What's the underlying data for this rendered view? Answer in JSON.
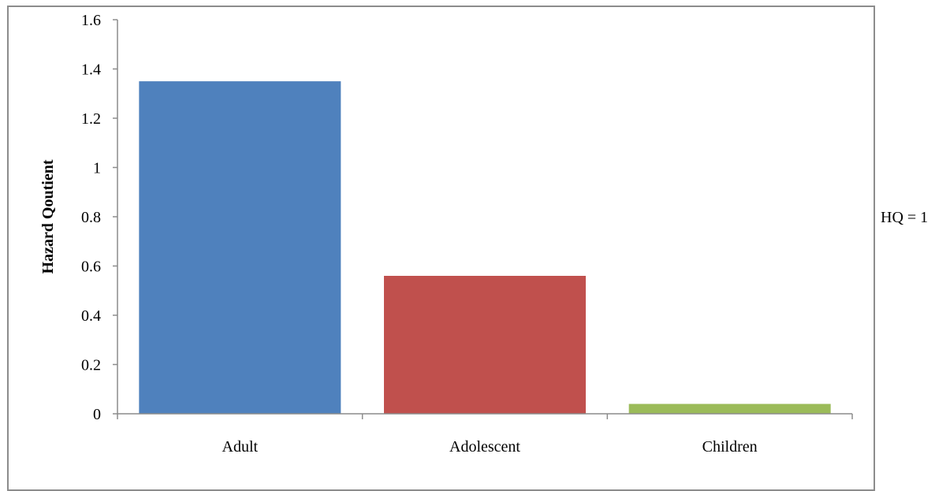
{
  "chart_data": {
    "type": "bar",
    "categories": [
      "Adult",
      "Adolescent",
      "Children"
    ],
    "values": [
      1.35,
      0.56,
      0.04
    ],
    "colors": [
      "#4f81bd",
      "#c0504d",
      "#9bbb59"
    ],
    "title": "",
    "xlabel": "",
    "ylabel": "Hazard Qoutient",
    "ylim": [
      0,
      1.6
    ],
    "yticks": [
      0,
      0.2,
      0.4,
      0.6,
      0.8,
      1,
      1.2,
      1.4,
      1.6
    ],
    "ytick_labels": [
      "0",
      "0.2",
      "0.4",
      "0.6",
      "0.8",
      "1",
      "1.2",
      "1.4",
      "1.6"
    ],
    "grid": false,
    "legend": "none",
    "annotations": [
      {
        "text": "HQ = 1",
        "y": 1
      }
    ]
  }
}
